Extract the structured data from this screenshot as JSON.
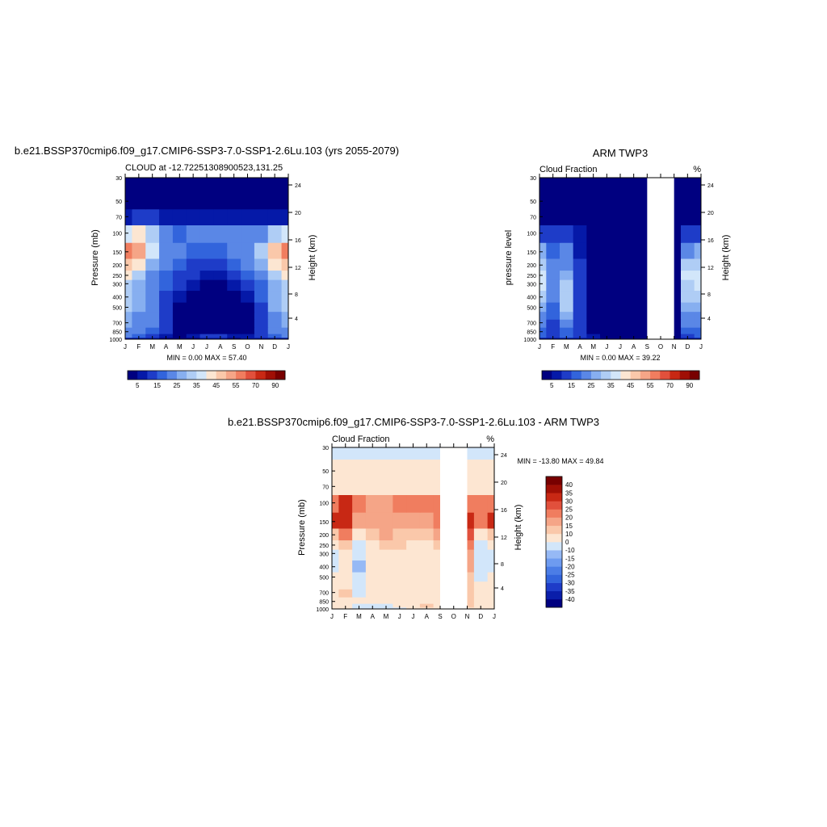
{
  "titles": {
    "panel1": "b.e21.BSSP370cmip6.f09_g17.CMIP6-SSP3-7.0-SSP1-2.6Lu.103 (yrs 2055-2079)",
    "panel1_sub": "CLOUD at -12.72251308900523,131.25",
    "panel2": "ARM TWP3",
    "panel2_sub": "Cloud Fraction",
    "panel2_unit": "%",
    "panel3": "b.e21.BSSP370cmip6.f09_g17.CMIP6-SSP3-7.0-SSP1-2.6Lu.103 - ARM TWP3",
    "panel3_sub": "Cloud Fraction",
    "panel3_unit": "%"
  },
  "stats": {
    "panel1": "MIN =   0.00 MAX =  57.40",
    "panel2": "MIN =   0.00 MAX =  39.22",
    "panel3": "MIN = -13.80 MAX =  49.84"
  },
  "axes": {
    "ylabel_pressure": "Pressure (mb)",
    "ylabel_pressure_lower": "pressure level",
    "ylabel_height": "Height (km)"
  },
  "chart_data": [
    {
      "type": "heatmap",
      "title": "b.e21.BSSP370cmip6.f09_g17.CMIP6-SSP3-7.0-SSP1-2.6Lu.103 (yrs 2055-2079)",
      "subtitle": "CLOUD at -12.72251308900523,131.25",
      "x_ticks": [
        "J",
        "F",
        "M",
        "A",
        "M",
        "J",
        "J",
        "A",
        "S",
        "O",
        "N",
        "D",
        "J"
      ],
      "y_ticks": [
        30,
        50,
        70,
        100,
        150,
        200,
        250,
        300,
        400,
        500,
        700,
        850,
        1000
      ],
      "y2_ticks": [
        24,
        20,
        16,
        12,
        8,
        4
      ],
      "ylabel": "Pressure (mb)",
      "y2label": "Height (km)",
      "levels": [
        5,
        10,
        15,
        20,
        25,
        30,
        35,
        40,
        45,
        50,
        55,
        60,
        70,
        80,
        90
      ],
      "level_labels": [
        "5",
        "15",
        "25",
        "35",
        "45",
        "55",
        "70",
        "90"
      ],
      "colors": [
        "#000080",
        "#0519a8",
        "#1e3cc8",
        "#3264dc",
        "#5a87e6",
        "#87aff0",
        "#afcdf5",
        "#d2e6fa",
        "#fce6d2",
        "#fac8aa",
        "#f5a587",
        "#f07d5f",
        "#e1503c",
        "#c82814",
        "#a00f05",
        "#780000"
      ],
      "min": 0.0,
      "max": 57.4,
      "pressures": [
        1000,
        925,
        850,
        700,
        600,
        500,
        400,
        300,
        250,
        200,
        150,
        100,
        70,
        50,
        30
      ],
      "rows": [
        [
          8,
          8,
          6,
          4,
          2,
          3,
          6,
          7,
          4,
          5,
          6,
          8,
          8
        ],
        [
          20,
          18,
          14,
          8,
          4,
          6,
          10,
          12,
          8,
          8,
          10,
          18,
          20
        ],
        [
          24,
          22,
          18,
          10,
          4,
          2,
          2,
          2,
          2,
          3,
          10,
          20,
          24
        ],
        [
          26,
          24,
          20,
          12,
          3,
          1,
          1,
          1,
          1,
          3,
          12,
          22,
          26
        ],
        [
          28,
          24,
          20,
          12,
          3,
          0,
          0,
          0,
          0,
          2,
          14,
          24,
          28
        ],
        [
          30,
          26,
          20,
          14,
          4,
          0,
          0,
          0,
          0,
          4,
          14,
          26,
          30
        ],
        [
          30,
          26,
          20,
          14,
          6,
          2,
          0,
          0,
          2,
          8,
          16,
          26,
          30
        ],
        [
          34,
          28,
          22,
          16,
          10,
          6,
          4,
          4,
          8,
          12,
          18,
          28,
          34
        ],
        [
          40,
          32,
          24,
          18,
          14,
          10,
          8,
          8,
          12,
          16,
          22,
          32,
          40
        ],
        [
          48,
          40,
          28,
          20,
          18,
          14,
          12,
          12,
          16,
          20,
          26,
          40,
          48
        ],
        [
          56,
          52,
          36,
          24,
          20,
          18,
          18,
          16,
          20,
          24,
          30,
          48,
          56
        ],
        [
          36,
          40,
          32,
          22,
          18,
          20,
          22,
          22,
          20,
          20,
          24,
          34,
          36
        ],
        [
          8,
          10,
          10,
          8,
          6,
          6,
          6,
          6,
          6,
          6,
          6,
          8,
          8
        ],
        [
          1,
          1,
          1,
          1,
          1,
          1,
          1,
          1,
          1,
          1,
          1,
          1,
          1
        ],
        [
          0,
          0,
          0,
          0,
          0,
          0,
          0,
          0,
          0,
          0,
          0,
          0,
          0
        ]
      ],
      "missing_months": []
    },
    {
      "type": "heatmap",
      "title": "ARM TWP3",
      "subtitle": "Cloud Fraction",
      "unit": "%",
      "x_ticks": [
        "J",
        "F",
        "M",
        "A",
        "M",
        "J",
        "J",
        "A",
        "S",
        "O",
        "N",
        "D",
        "J"
      ],
      "y_ticks": [
        30,
        50,
        70,
        100,
        150,
        200,
        250,
        300,
        400,
        500,
        700,
        850,
        1000
      ],
      "y2_ticks": [
        24,
        20,
        16,
        12,
        8,
        4
      ],
      "ylabel": "pressure level",
      "y2label": "Height (km)",
      "levels": [
        5,
        10,
        15,
        20,
        25,
        30,
        35,
        40,
        45,
        50,
        55,
        60,
        70,
        80,
        90
      ],
      "level_labels": [
        "5",
        "15",
        "25",
        "35",
        "45",
        "55",
        "70",
        "90"
      ],
      "colors": [
        "#000080",
        "#0519a8",
        "#1e3cc8",
        "#3264dc",
        "#5a87e6",
        "#87aff0",
        "#afcdf5",
        "#d2e6fa",
        "#fce6d2",
        "#fac8aa",
        "#f5a587",
        "#f07d5f",
        "#e1503c",
        "#c82814",
        "#a00f05",
        "#780000"
      ],
      "min": 0.0,
      "max": 39.22,
      "pressures": [
        1000,
        925,
        850,
        700,
        600,
        500,
        400,
        300,
        250,
        200,
        150,
        100,
        70,
        50,
        30
      ],
      "rows": [
        [
          6,
          8,
          8,
          6,
          6,
          4,
          2,
          2,
          0,
          0,
          0,
          6,
          6
        ],
        [
          16,
          14,
          16,
          10,
          6,
          4,
          3,
          2,
          0,
          0,
          0,
          14,
          16
        ],
        [
          18,
          14,
          18,
          10,
          4,
          2,
          2,
          1,
          0,
          0,
          0,
          16,
          18
        ],
        [
          20,
          14,
          22,
          10,
          3,
          1,
          1,
          1,
          0,
          0,
          0,
          20,
          20
        ],
        [
          24,
          16,
          26,
          10,
          2,
          1,
          1,
          0,
          0,
          0,
          0,
          24,
          24
        ],
        [
          28,
          18,
          30,
          10,
          2,
          0,
          0,
          0,
          0,
          0,
          0,
          28,
          28
        ],
        [
          32,
          20,
          32,
          10,
          2,
          0,
          0,
          0,
          0,
          0,
          0,
          30,
          32
        ],
        [
          36,
          22,
          30,
          10,
          2,
          0,
          0,
          0,
          0,
          0,
          0,
          34,
          36
        ],
        [
          38,
          22,
          28,
          10,
          2,
          0,
          0,
          0,
          0,
          0,
          0,
          36,
          38
        ],
        [
          34,
          20,
          24,
          10,
          2,
          0,
          0,
          0,
          0,
          0,
          0,
          32,
          34
        ],
        [
          26,
          18,
          20,
          8,
          2,
          0,
          0,
          0,
          0,
          0,
          0,
          24,
          26
        ],
        [
          14,
          10,
          12,
          6,
          1,
          0,
          0,
          0,
          0,
          0,
          0,
          12,
          14
        ],
        [
          4,
          3,
          3,
          2,
          0,
          0,
          0,
          0,
          0,
          0,
          0,
          3,
          4
        ],
        [
          0,
          0,
          0,
          0,
          0,
          0,
          0,
          0,
          0,
          0,
          0,
          0,
          0
        ],
        [
          0,
          0,
          0,
          0,
          0,
          0,
          0,
          0,
          0,
          0,
          0,
          0,
          0
        ]
      ],
      "missing_months": [
        8,
        9
      ]
    },
    {
      "type": "heatmap",
      "title": "b.e21.BSSP370cmip6.f09_g17.CMIP6-SSP3-7.0-SSP1-2.6Lu.103 - ARM TWP3",
      "subtitle": "Cloud Fraction",
      "unit": "%",
      "x_ticks": [
        "J",
        "F",
        "M",
        "A",
        "M",
        "J",
        "J",
        "A",
        "S",
        "O",
        "N",
        "D",
        "J"
      ],
      "y_ticks": [
        30,
        50,
        70,
        100,
        150,
        200,
        250,
        300,
        400,
        500,
        700,
        850,
        1000
      ],
      "y2_ticks": [
        24,
        20,
        16,
        12,
        8,
        4
      ],
      "ylabel": "Pressure (mb)",
      "y2label": "Height (km)",
      "levels": [
        -40,
        -35,
        -30,
        -25,
        -20,
        -15,
        -10,
        0,
        10,
        15,
        20,
        25,
        30,
        35,
        40
      ],
      "level_labels": [
        "40",
        "35",
        "30",
        "25",
        "20",
        "15",
        "10",
        "0",
        "-10",
        "-15",
        "-20",
        "-25",
        "-30",
        "-35",
        "-40"
      ],
      "colors": [
        "#000080",
        "#0a1eaa",
        "#1e3cc8",
        "#3264dc",
        "#4b7de6",
        "#6e9bf0",
        "#96b9f5",
        "#d2e6fa",
        "#fde6d2",
        "#fac8aa",
        "#f5a587",
        "#f07d5f",
        "#e1503c",
        "#c82814",
        "#a00f05",
        "#780000"
      ],
      "min": -13.8,
      "max": 49.84,
      "pressures": [
        1000,
        925,
        850,
        700,
        600,
        500,
        400,
        300,
        250,
        200,
        150,
        100,
        70,
        50,
        30
      ],
      "rows": [
        [
          2,
          0,
          -2,
          -2,
          -4,
          -2,
          4,
          5,
          4,
          5,
          6,
          2,
          2
        ],
        [
          4,
          4,
          -2,
          -2,
          -2,
          2,
          7,
          10,
          8,
          8,
          10,
          4,
          4
        ],
        [
          6,
          8,
          0,
          0,
          1,
          1,
          1,
          1,
          2,
          3,
          10,
          4,
          6
        ],
        [
          6,
          10,
          -2,
          2,
          1,
          1,
          1,
          1,
          1,
          3,
          12,
          2,
          6
        ],
        [
          4,
          8,
          -6,
          2,
          1,
          0,
          0,
          0,
          0,
          2,
          14,
          0,
          4
        ],
        [
          2,
          8,
          -10,
          4,
          2,
          0,
          0,
          0,
          0,
          4,
          14,
          -2,
          2
        ],
        [
          -2,
          6,
          -12,
          4,
          4,
          2,
          0,
          0,
          2,
          8,
          16,
          -4,
          -2
        ],
        [
          -2,
          6,
          -8,
          6,
          8,
          6,
          4,
          4,
          8,
          12,
          18,
          -6,
          -2
        ],
        [
          2,
          10,
          -4,
          8,
          12,
          10,
          8,
          8,
          12,
          16,
          22,
          -4,
          2
        ],
        [
          14,
          20,
          4,
          10,
          16,
          14,
          12,
          12,
          16,
          20,
          26,
          8,
          14
        ],
        [
          30,
          34,
          16,
          16,
          18,
          18,
          18,
          16,
          20,
          24,
          30,
          24,
          30
        ],
        [
          22,
          30,
          20,
          16,
          17,
          20,
          22,
          22,
          20,
          20,
          24,
          22,
          22
        ],
        [
          4,
          7,
          7,
          6,
          6,
          6,
          6,
          6,
          6,
          6,
          6,
          5,
          4
        ],
        [
          1,
          1,
          1,
          1,
          1,
          1,
          1,
          1,
          1,
          1,
          1,
          1,
          1
        ],
        [
          -4,
          -4,
          -4,
          -4,
          -4,
          -4,
          -4,
          -4,
          -4,
          -4,
          -4,
          -4,
          -4
        ]
      ],
      "missing_months": [
        8,
        9
      ]
    }
  ]
}
